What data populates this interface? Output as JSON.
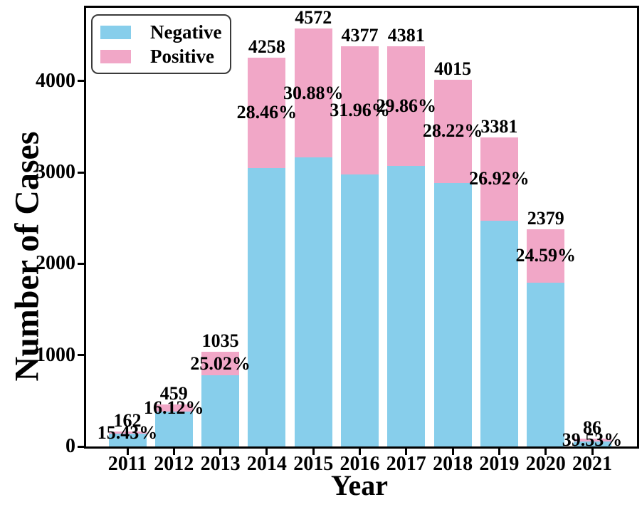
{
  "figure": {
    "background": "#FFFFFF"
  },
  "chart_data": {
    "type": "bar",
    "stacked": true,
    "title": "",
    "xlabel": "Year",
    "ylabel": "Number of Cases",
    "categories": [
      "2011",
      "2012",
      "2013",
      "2014",
      "2015",
      "2016",
      "2017",
      "2018",
      "2019",
      "2020",
      "2021"
    ],
    "series": [
      {
        "name": "Negative",
        "color": "#87CEEB",
        "values": [
          137,
          385,
          776,
          3046,
          3160,
          2978,
          3073,
          2882,
          2471,
          1794,
          52
        ]
      },
      {
        "name": "Positive",
        "color": "#F1A7C7",
        "values": [
          25,
          74,
          259,
          1212,
          1412,
          1399,
          1308,
          1133,
          910,
          585,
          34
        ]
      }
    ],
    "totals": [
      162,
      459,
      1035,
      4258,
      4572,
      4377,
      4381,
      4015,
      3381,
      2379,
      86
    ],
    "total_labels": [
      "162",
      "459",
      "1035",
      "4258",
      "4572",
      "4377",
      "4381",
      "4015",
      "3381",
      "2379",
      "86"
    ],
    "percent_labels": [
      "15.43%",
      "16.12%",
      "25.02%",
      "28.46%",
      "30.88%",
      "31.96%",
      "29.86%",
      "28.22%",
      "26.92%",
      "24.59%",
      "39.53%"
    ],
    "ylim": [
      0,
      4800
    ],
    "yticks": [
      0,
      1000,
      2000,
      3000,
      4000
    ],
    "ytick_labels": [
      "0",
      "1000",
      "2000",
      "3000",
      "4000"
    ],
    "grid": false,
    "legend": {
      "position": "upper-left",
      "entries": [
        "Negative",
        "Positive"
      ]
    },
    "colors": {
      "frame": "#000000",
      "text": "#000000"
    }
  }
}
